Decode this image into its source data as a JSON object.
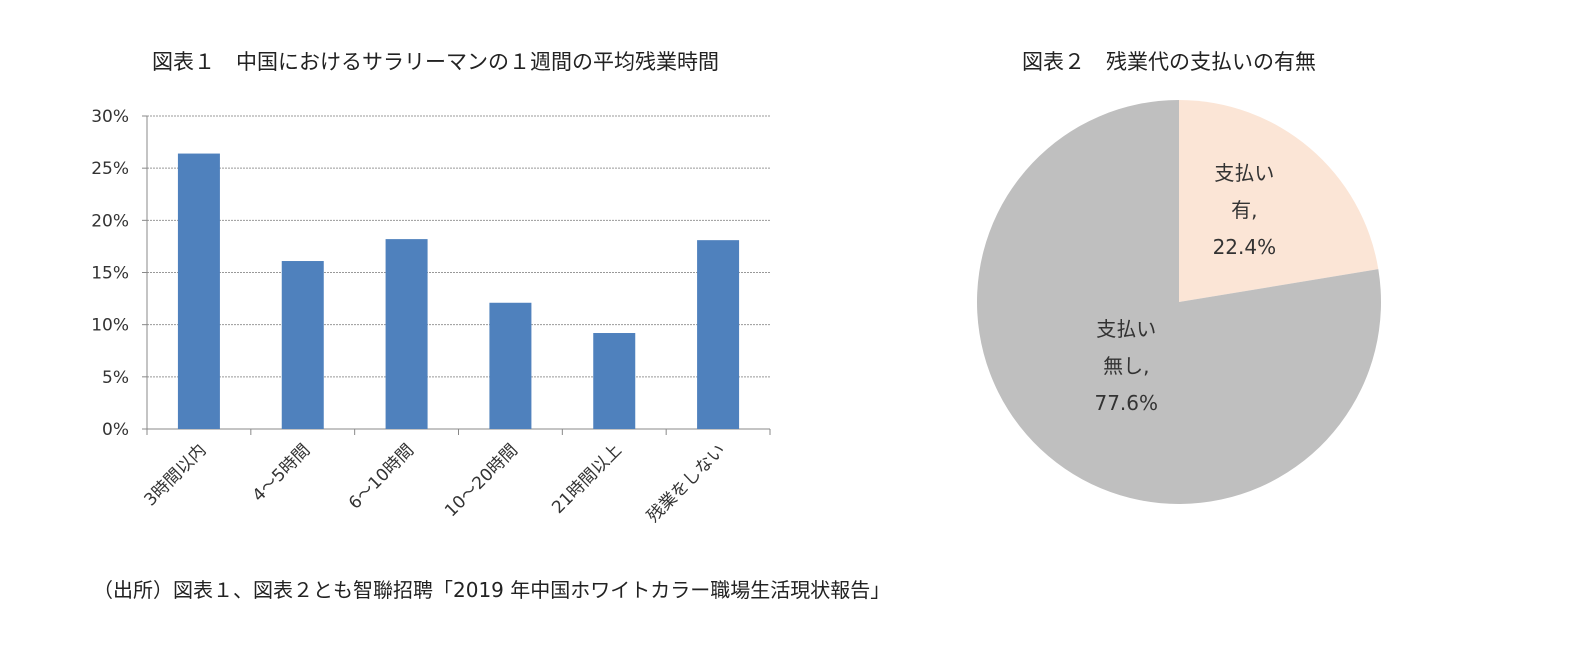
{
  "chart_data": [
    {
      "type": "bar",
      "title": "図表１　中国におけるサラリーマンの１週間の平均残業時間",
      "categories": [
        "3時間以内",
        "4～5時間",
        "6～10時間",
        "10～20時間",
        "21時間以上",
        "残業をしない"
      ],
      "values": [
        26.4,
        16.1,
        18.2,
        12.1,
        9.2,
        18.1
      ],
      "unit": "%",
      "ylim": [
        0,
        30
      ],
      "yticks": [
        "0%",
        "5%",
        "10%",
        "15%",
        "20%",
        "25%",
        "30%"
      ],
      "grid": true,
      "color": "#4F81BD"
    },
    {
      "type": "pie",
      "title": "図表２　残業代の支払いの有無",
      "slices": [
        {
          "label_lines": [
            "支払い",
            "有,",
            "22.4%"
          ],
          "value": 22.4,
          "color": "#FBE5D6"
        },
        {
          "label_lines": [
            "支払い",
            "無し,",
            "77.6%"
          ],
          "value": 77.6,
          "color": "#BFBFBF"
        }
      ]
    }
  ],
  "source": "（出所）図表１、図表２とも智聯招聘「2019 年中国ホワイトカラー職場生活現状報告」"
}
